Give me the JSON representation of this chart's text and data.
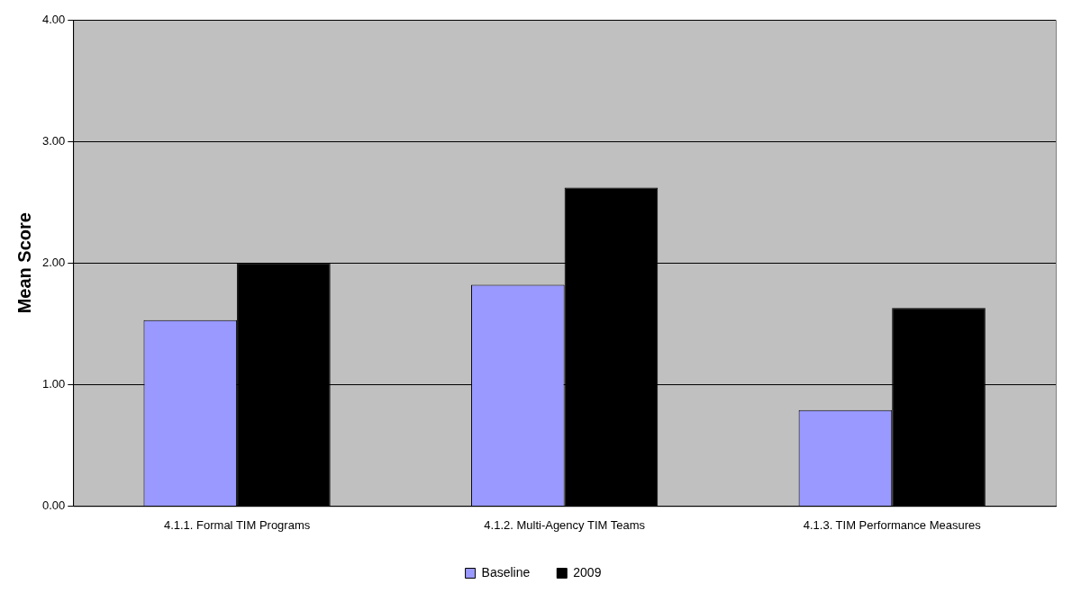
{
  "chart_data": {
    "type": "bar",
    "ylabel": "Mean Score",
    "categories": [
      "4.1.1. Formal TIM Programs",
      "4.1.2. Multi-Agency TIM Teams",
      "4.1.3. TIM Performance Measures"
    ],
    "series": [
      {
        "name": "Baseline",
        "color": "#9999ff",
        "values": [
          1.53,
          1.82,
          0.79
        ]
      },
      {
        "name": "2009",
        "color": "#000000",
        "values": [
          2.0,
          2.62,
          1.63
        ]
      }
    ],
    "ylim": [
      0,
      4
    ],
    "yticks": [
      {
        "value": 0,
        "label": "0.00"
      },
      {
        "value": 1,
        "label": "1.00"
      },
      {
        "value": 2,
        "label": "2.00"
      },
      {
        "value": 3,
        "label": "3.00"
      },
      {
        "value": 4,
        "label": "4.00"
      }
    ],
    "grid": "y",
    "legend": "bottom"
  }
}
